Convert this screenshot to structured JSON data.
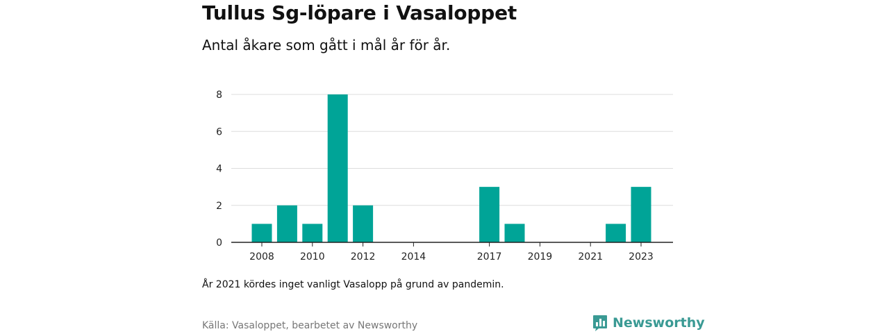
{
  "header": {
    "title": "Tullus Sg-löpare i Vasaloppet",
    "subtitle": "Antal åkare som gått i mål år för år."
  },
  "footer": {
    "note": "År 2021 kördes inget vanligt Vasalopp på grund av pandemin.",
    "source": "Källa: Vasaloppet, bearbetet av Newsworthy",
    "brand": "Newsworthy",
    "brand_icon": "bar-chart-speech-bubble-icon"
  },
  "colors": {
    "bar": "#00a497",
    "grid": "#dddddd",
    "axis": "#222222",
    "brand": "#3a9a94"
  },
  "chart_data": {
    "type": "bar",
    "title": "Tullus Sg-löpare i Vasaloppet",
    "subtitle": "Antal åkare som gått i mål år för år.",
    "categories": [
      2008,
      2009,
      2010,
      2011,
      2012,
      2013,
      2014,
      2015,
      2016,
      2017,
      2018,
      2019,
      2020,
      2021,
      2022,
      2023
    ],
    "values": [
      1,
      2,
      1,
      8,
      2,
      0,
      0,
      0,
      0,
      3,
      1,
      0,
      0,
      0,
      1,
      3
    ],
    "x_tick_labels": [
      "2008",
      "2010",
      "2012",
      "2014",
      "2017",
      "2019",
      "2021",
      "2023"
    ],
    "x_tick_years": [
      2008,
      2010,
      2012,
      2014,
      2017,
      2019,
      2021,
      2023
    ],
    "y_ticks": [
      0,
      2,
      4,
      6,
      8
    ],
    "ylim": [
      0,
      8
    ],
    "grid": true,
    "legend": false,
    "xlabel": "",
    "ylabel": ""
  }
}
